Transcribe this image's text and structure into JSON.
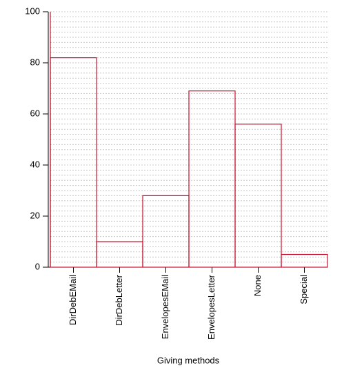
{
  "chart_data": {
    "type": "bar",
    "x_label": "Giving methods",
    "categories": [
      "DirDebEMail",
      "DirDebLetter",
      "EnvelopesEMail",
      "EnvelopesLetter",
      "None",
      "Special"
    ],
    "values": [
      82,
      10,
      28,
      69,
      56,
      5
    ],
    "color": "#c8102e",
    "ylim": [
      0,
      100
    ],
    "yticks": [
      0,
      20,
      40,
      60,
      80,
      100
    ],
    "grid": true,
    "minor_grid_step": 2
  }
}
